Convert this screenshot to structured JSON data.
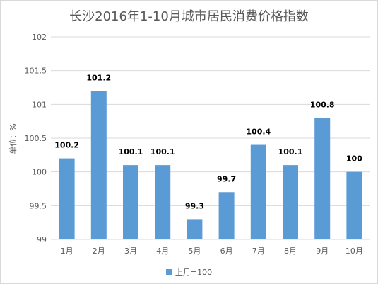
{
  "chart_data": {
    "type": "bar",
    "title": "长沙2016年1-10月城市居民消费价格指数",
    "ylabel": "单位：%",
    "xlabel": "",
    "categories": [
      "1月",
      "2月",
      "3月",
      "4月",
      "5月",
      "6月",
      "7月",
      "8月",
      "9月",
      "10月"
    ],
    "series": [
      {
        "name": "上月=100",
        "color": "#5b9bd5",
        "values": [
          100.2,
          101.2,
          100.1,
          100.1,
          99.3,
          99.7,
          100.4,
          100.1,
          100.8,
          100
        ],
        "labels": [
          "100.2",
          "101.2",
          "100.1",
          "100.1",
          "99.3",
          "99.7",
          "100.4",
          "100.1",
          "100.8",
          "100"
        ]
      }
    ],
    "ylim": [
      99,
      102
    ],
    "yticks": [
      99,
      99.5,
      100,
      100.5,
      101,
      101.5,
      102
    ],
    "ytick_labels": [
      "99",
      "99.5",
      "100",
      "100.5",
      "101",
      "101.5",
      "102"
    ],
    "grid": true,
    "grid_color": "#d9d9d9",
    "legend_position": "bottom"
  }
}
